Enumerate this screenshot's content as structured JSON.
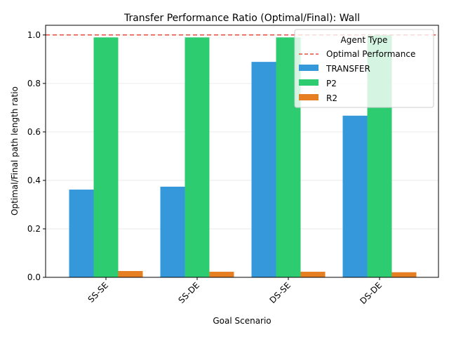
{
  "chart_data": {
    "type": "bar",
    "title": "Transfer Performance Ratio (Optimal/Final): Wall",
    "xlabel": "Goal Scenario",
    "ylabel": "Optimal/Final path length ratio",
    "categories": [
      "SS-SE",
      "SS-DE",
      "DS-SE",
      "DS-DE"
    ],
    "series": [
      {
        "name": "TRANSFER",
        "color": "#3498db",
        "values": [
          0.362,
          0.374,
          0.889,
          0.667
        ]
      },
      {
        "name": "P2",
        "color": "#2ecc71",
        "values": [
          0.99,
          0.99,
          0.99,
          1.0
        ]
      },
      {
        "name": "R2",
        "color": "#e67e22",
        "values": [
          0.026,
          0.023,
          0.023,
          0.021
        ]
      }
    ],
    "reference_line": {
      "name": "Optimal Performance",
      "value": 1.0,
      "color": "#e74c3c",
      "style": "dashed"
    },
    "ylim": [
      0,
      1.04
    ],
    "yticks": [
      "0.0",
      "0.2",
      "0.4",
      "0.6",
      "0.8",
      "1.0"
    ],
    "grid": "y",
    "legend": {
      "title": "Agent Type",
      "placement": "top-right"
    }
  }
}
